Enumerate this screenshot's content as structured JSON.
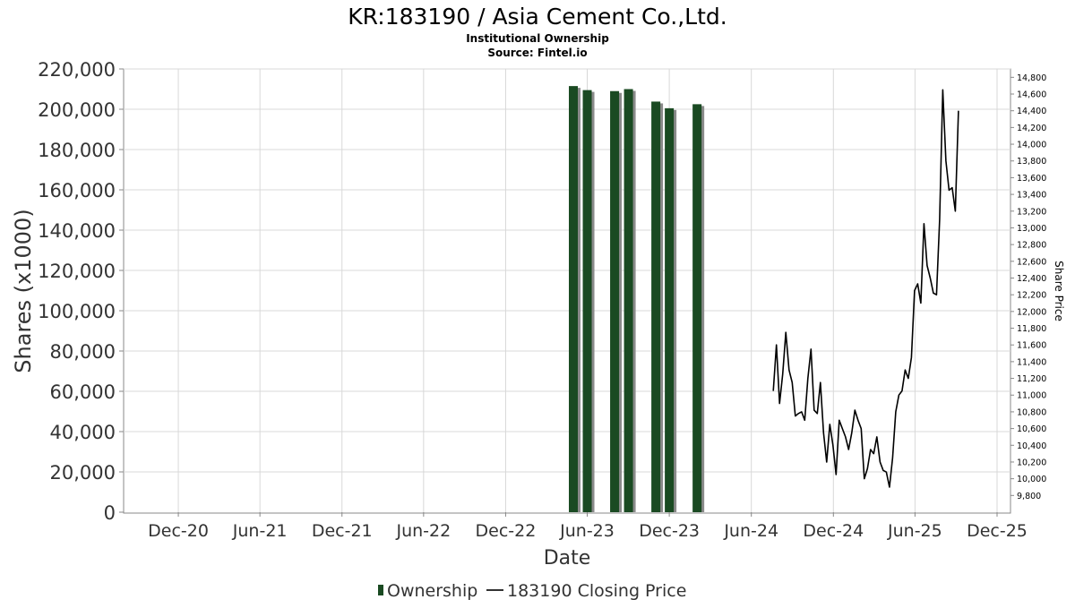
{
  "chart_data": {
    "type": "bar",
    "title": "KR:183190 / Asia Cement Co.,Ltd.",
    "subtitle": "Institutional Ownership",
    "source": "Source: Fintel.io",
    "xlabel": "Date",
    "ylabel": "Shares (x1000)",
    "y2label": "Share Price",
    "grid": true,
    "legend_placement": "bottom",
    "ylim": [
      0,
      220000
    ],
    "y2lim": [
      9600,
      14900
    ],
    "xlim": [
      "2020-08-01",
      "2025-12-31"
    ],
    "yticks": [
      "0",
      "20,000",
      "40,000",
      "60,000",
      "80,000",
      "100,000",
      "120,000",
      "140,000",
      "160,000",
      "180,000",
      "200,000",
      "220,000"
    ],
    "y2ticks": [
      "9,800",
      "10,000",
      "10,200",
      "10,400",
      "10,600",
      "10,800",
      "11,000",
      "11,200",
      "11,400",
      "11,600",
      "11,800",
      "12,000",
      "12,200",
      "12,400",
      "12,600",
      "12,800",
      "13,000",
      "13,200",
      "13,400",
      "13,600",
      "13,800",
      "14,000",
      "14,200",
      "14,400",
      "14,600",
      "14,800"
    ],
    "xticks": [
      {
        "label": "Dec-20",
        "date": "2020-12-01"
      },
      {
        "label": "Jun-21",
        "date": "2021-06-01"
      },
      {
        "label": "Dec-21",
        "date": "2021-12-01"
      },
      {
        "label": "Jun-22",
        "date": "2022-06-01"
      },
      {
        "label": "Dec-22",
        "date": "2022-12-01"
      },
      {
        "label": "Jun-23",
        "date": "2023-06-01"
      },
      {
        "label": "Dec-23",
        "date": "2023-12-01"
      },
      {
        "label": "Jun-24",
        "date": "2024-06-01"
      },
      {
        "label": "Dec-24",
        "date": "2024-12-01"
      },
      {
        "label": "Jun-25",
        "date": "2025-06-01"
      },
      {
        "label": "Dec-25",
        "date": "2025-12-01"
      }
    ],
    "colors": {
      "bar": "#1a4a22",
      "bar_shadow": "#8a8a8a",
      "line": "#000000",
      "grid": "#d8d8d8",
      "axis": "#888888"
    },
    "series": [
      {
        "name": "Ownership",
        "type": "bar",
        "axis": "left",
        "points": [
          {
            "x": "2023-05-01",
            "y": 211500
          },
          {
            "x": "2023-06-01",
            "y": 209500
          },
          {
            "x": "2023-08-01",
            "y": 209000
          },
          {
            "x": "2023-09-01",
            "y": 210000
          },
          {
            "x": "2023-11-01",
            "y": 203800
          },
          {
            "x": "2023-12-01",
            "y": 200500
          },
          {
            "x": "2024-02-01",
            "y": 202500
          }
        ]
      },
      {
        "name": "183190 Closing Price",
        "type": "line",
        "axis": "right",
        "points": [
          {
            "x": "2024-07-20",
            "y": 11050
          },
          {
            "x": "2024-07-27",
            "y": 11600
          },
          {
            "x": "2024-08-03",
            "y": 10900
          },
          {
            "x": "2024-08-10",
            "y": 11250
          },
          {
            "x": "2024-08-17",
            "y": 11750
          },
          {
            "x": "2024-08-24",
            "y": 11300
          },
          {
            "x": "2024-08-31",
            "y": 11150
          },
          {
            "x": "2024-09-07",
            "y": 10750
          },
          {
            "x": "2024-09-14",
            "y": 10780
          },
          {
            "x": "2024-09-21",
            "y": 10800
          },
          {
            "x": "2024-09-28",
            "y": 10700
          },
          {
            "x": "2024-10-05",
            "y": 11200
          },
          {
            "x": "2024-10-12",
            "y": 11550
          },
          {
            "x": "2024-10-19",
            "y": 10820
          },
          {
            "x": "2024-10-26",
            "y": 10780
          },
          {
            "x": "2024-11-02",
            "y": 11150
          },
          {
            "x": "2024-11-09",
            "y": 10550
          },
          {
            "x": "2024-11-16",
            "y": 10200
          },
          {
            "x": "2024-11-23",
            "y": 10650
          },
          {
            "x": "2024-11-30",
            "y": 10400
          },
          {
            "x": "2024-12-07",
            "y": 10050
          },
          {
            "x": "2024-12-14",
            "y": 10700
          },
          {
            "x": "2024-12-21",
            "y": 10600
          },
          {
            "x": "2024-12-28",
            "y": 10500
          },
          {
            "x": "2025-01-04",
            "y": 10350
          },
          {
            "x": "2025-01-11",
            "y": 10550
          },
          {
            "x": "2025-01-18",
            "y": 10820
          },
          {
            "x": "2025-01-25",
            "y": 10700
          },
          {
            "x": "2025-02-01",
            "y": 10600
          },
          {
            "x": "2025-02-08",
            "y": 10000
          },
          {
            "x": "2025-02-15",
            "y": 10120
          },
          {
            "x": "2025-02-22",
            "y": 10350
          },
          {
            "x": "2025-03-01",
            "y": 10300
          },
          {
            "x": "2025-03-08",
            "y": 10500
          },
          {
            "x": "2025-03-15",
            "y": 10200
          },
          {
            "x": "2025-03-22",
            "y": 10100
          },
          {
            "x": "2025-03-29",
            "y": 10080
          },
          {
            "x": "2025-04-05",
            "y": 9900
          },
          {
            "x": "2025-04-12",
            "y": 10250
          },
          {
            "x": "2025-04-19",
            "y": 10800
          },
          {
            "x": "2025-04-26",
            "y": 11000
          },
          {
            "x": "2025-05-03",
            "y": 11050
          },
          {
            "x": "2025-05-10",
            "y": 11300
          },
          {
            "x": "2025-05-17",
            "y": 11200
          },
          {
            "x": "2025-05-24",
            "y": 11450
          },
          {
            "x": "2025-05-31",
            "y": 12250
          },
          {
            "x": "2025-06-07",
            "y": 12330
          },
          {
            "x": "2025-06-14",
            "y": 12100
          },
          {
            "x": "2025-06-21",
            "y": 13050
          },
          {
            "x": "2025-06-28",
            "y": 12550
          },
          {
            "x": "2025-07-05",
            "y": 12400
          },
          {
            "x": "2025-07-12",
            "y": 12220
          },
          {
            "x": "2025-07-19",
            "y": 12200
          },
          {
            "x": "2025-07-26",
            "y": 13100
          },
          {
            "x": "2025-08-02",
            "y": 14650
          },
          {
            "x": "2025-08-09",
            "y": 13800
          },
          {
            "x": "2025-08-16",
            "y": 13450
          },
          {
            "x": "2025-08-23",
            "y": 13480
          },
          {
            "x": "2025-08-30",
            "y": 13200
          },
          {
            "x": "2025-09-06",
            "y": 14400
          }
        ]
      }
    ]
  }
}
